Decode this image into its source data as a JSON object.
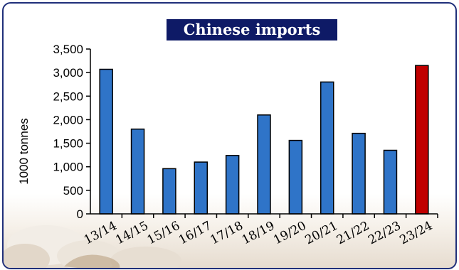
{
  "colors": {
    "frame": "#1f2f7a",
    "title_band": "#0e1a66",
    "bar_default": "#2f74c8",
    "bar_highlight": "#c00000"
  },
  "chart_data": {
    "type": "bar",
    "title": "Chinese imports",
    "xlabel": "",
    "ylabel": "1000 tonnes",
    "ylim": [
      0,
      3500
    ],
    "yticks": [
      0,
      500,
      1000,
      1500,
      2000,
      2500,
      3000,
      3500
    ],
    "ytick_labels": [
      "0",
      "500",
      "1,000",
      "1,500",
      "2,000",
      "2,500",
      "3,000",
      "3,500"
    ],
    "categories": [
      "13/14",
      "14/15",
      "15/16",
      "16/17",
      "17/18",
      "18/19",
      "19/20",
      "20/21",
      "21/22",
      "22/23",
      "23/24"
    ],
    "values": [
      3070,
      1800,
      960,
      1100,
      1240,
      2100,
      1560,
      2800,
      1710,
      1350,
      3150
    ],
    "highlight": [
      "23/24"
    ],
    "grid": false
  }
}
